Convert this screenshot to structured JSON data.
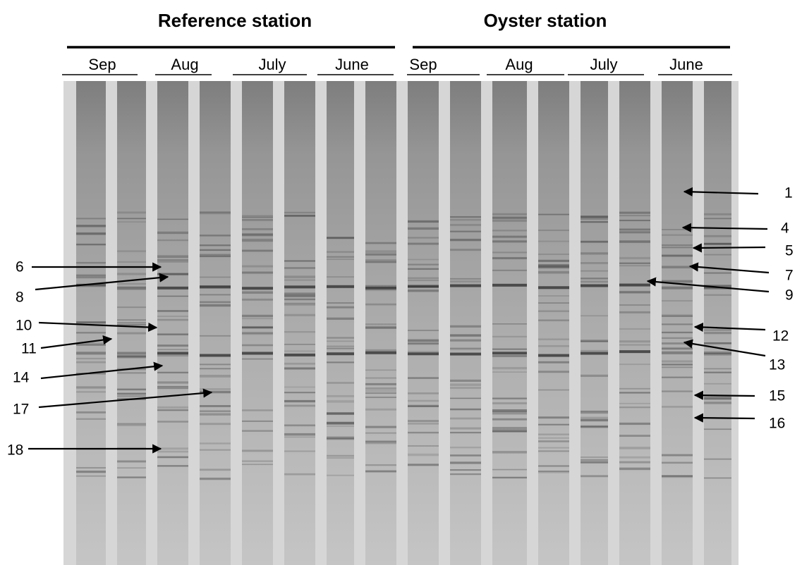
{
  "groups": [
    {
      "title": "Reference station",
      "months": [
        "Sep",
        "Aug",
        "July",
        "June"
      ]
    },
    {
      "title": "Oyster station",
      "months": [
        "Sep",
        "Aug",
        "July",
        "June"
      ]
    }
  ],
  "band_labels": {
    "left": [
      "6",
      "8",
      "10",
      "11",
      "14",
      "17",
      "18"
    ],
    "right": [
      "1",
      "4",
      "5",
      "7",
      "9",
      "12",
      "13",
      "15",
      "16"
    ]
  }
}
